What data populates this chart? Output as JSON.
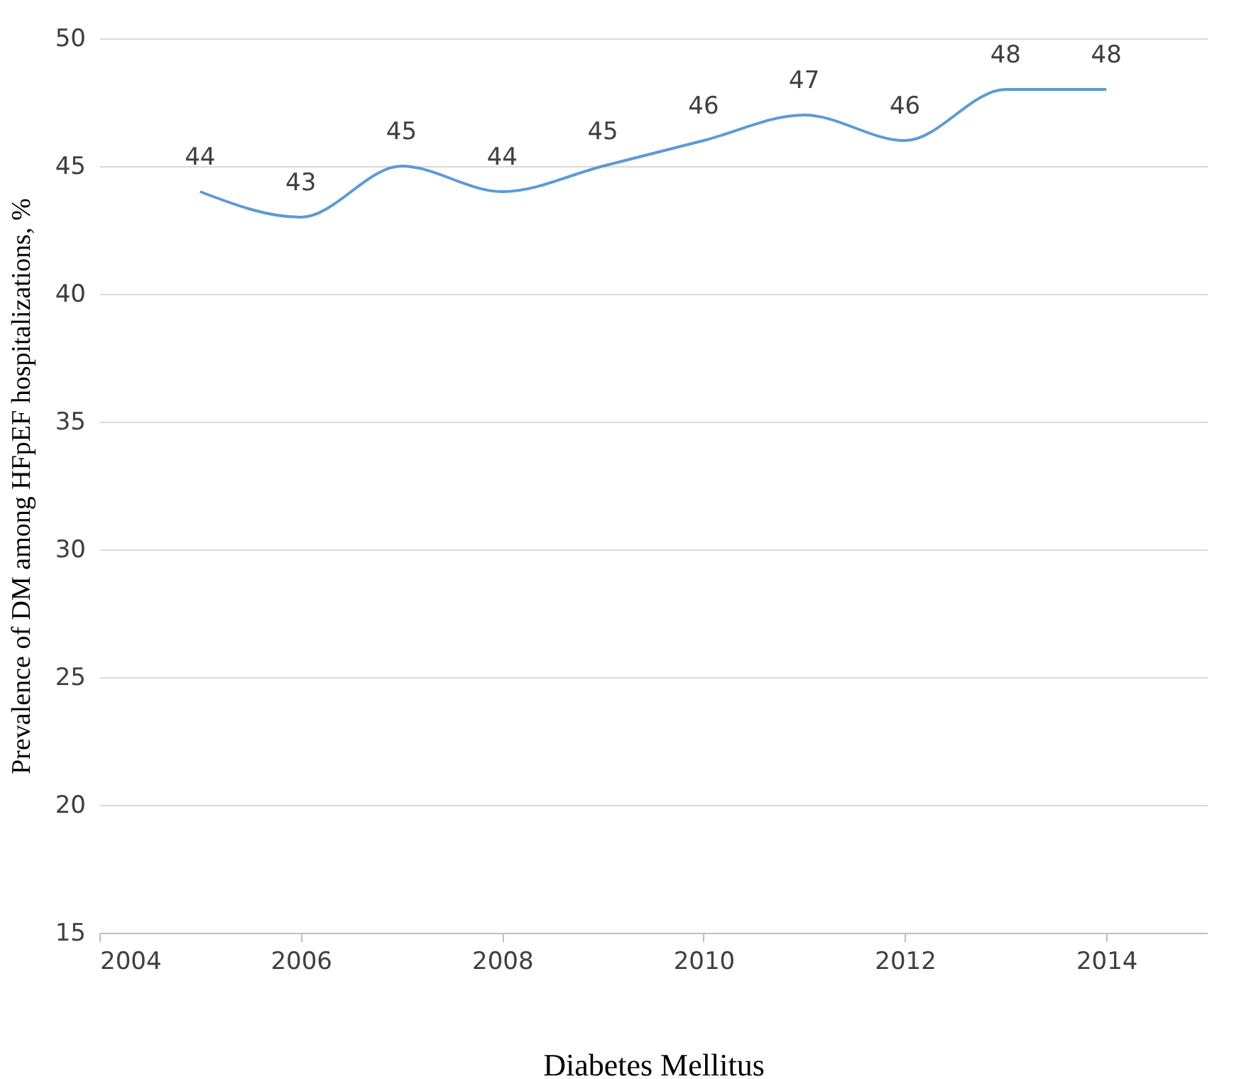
{
  "chart_data": {
    "type": "line",
    "xlabel": "Diabetes Mellitus",
    "ylabel": "Prevalence of DM among HFpEF hospitalizations, %",
    "x": [
      2005,
      2006,
      2007,
      2008,
      2009,
      2010,
      2011,
      2012,
      2013,
      2014
    ],
    "series": [
      {
        "color": "#5b9bd5",
        "values": [
          44,
          43,
          45,
          44,
          45,
          46,
          47,
          46,
          48,
          48
        ]
      }
    ],
    "xlim": [
      2004,
      2015
    ],
    "xticks": [
      2004,
      2006,
      2008,
      2010,
      2012,
      2014
    ],
    "ylim": [
      15,
      50
    ],
    "yticks": [
      15,
      20,
      25,
      30,
      35,
      40,
      45,
      50
    ],
    "grid": "y",
    "data_labels": true,
    "marker": "none",
    "line_style": "solid"
  }
}
